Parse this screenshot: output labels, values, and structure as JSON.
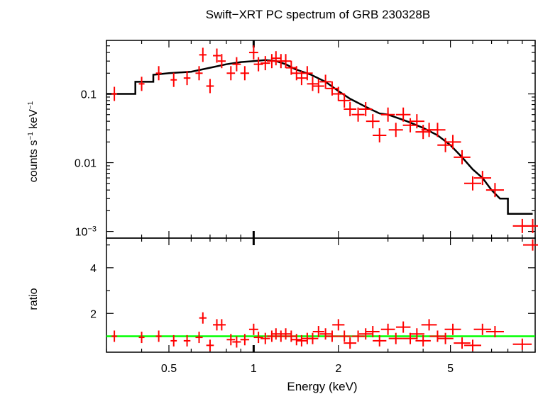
{
  "chart_data": {
    "type": "scatter",
    "title": "Swift−XRT PC spectrum of GRB 230328B",
    "xlabel": "Energy (keV)",
    "x_scale": "log",
    "xlim": [
      0.3,
      10
    ],
    "x_ticks": [
      {
        "v": 0.5,
        "label": "0.5"
      },
      {
        "v": 1,
        "label": "1"
      },
      {
        "v": 2,
        "label": "2"
      },
      {
        "v": 5,
        "label": "5"
      }
    ],
    "panels": [
      {
        "id": "spectrum",
        "ylabel_parts": [
          "counts s",
          "−1",
          " keV",
          "−1"
        ],
        "y_scale": "log",
        "ylim": [
          0.0008,
          0.6
        ],
        "y_ticks": [
          {
            "v": 0.1,
            "label": "0.1"
          },
          {
            "v": 0.01,
            "label": "0.01"
          },
          {
            "v": 0.001,
            "label": "10",
            "exp": "−3"
          }
        ],
        "model": {
          "name": "model",
          "color": "#000000",
          "x": [
            0.3,
            0.38,
            0.38,
            0.44,
            0.44,
            0.5,
            0.6,
            0.7,
            0.8,
            0.9,
            1.0,
            1.1,
            1.2,
            1.3,
            1.4,
            1.6,
            1.8,
            2.0,
            2.2,
            2.5,
            2.8,
            3.0,
            3.5,
            4.0,
            4.5,
            5.0,
            5.5,
            6.0,
            6.5,
            7.0,
            7.5,
            8.0,
            8.0,
            9.8
          ],
          "y": [
            0.1,
            0.1,
            0.15,
            0.15,
            0.19,
            0.2,
            0.21,
            0.24,
            0.27,
            0.29,
            0.3,
            0.31,
            0.3,
            0.27,
            0.23,
            0.19,
            0.15,
            0.11,
            0.085,
            0.065,
            0.052,
            0.05,
            0.04,
            0.032,
            0.025,
            0.018,
            0.012,
            0.008,
            0.006,
            0.004,
            0.003,
            0.003,
            0.0018,
            0.0018
          ]
        },
        "series": [
          {
            "name": "data",
            "color": "#ff0000",
            "x": [
              0.32,
              0.4,
              0.46,
              0.52,
              0.58,
              0.64,
              0.66,
              0.7,
              0.74,
              0.77,
              0.83,
              0.87,
              0.93,
              1.0,
              1.04,
              1.1,
              1.16,
              1.2,
              1.25,
              1.3,
              1.36,
              1.42,
              1.48,
              1.55,
              1.62,
              1.7,
              1.8,
              1.9,
              2.0,
              2.1,
              2.2,
              2.35,
              2.5,
              2.65,
              2.8,
              3.0,
              3.2,
              3.4,
              3.6,
              3.8,
              4.0,
              4.2,
              4.5,
              4.8,
              5.1,
              5.5,
              6.0,
              6.5,
              7.2,
              9.0,
              9.8
            ],
            "y": [
              0.1,
              0.14,
              0.2,
              0.16,
              0.17,
              0.2,
              0.37,
              0.13,
              0.36,
              0.3,
              0.2,
              0.27,
              0.2,
              0.4,
              0.27,
              0.28,
              0.3,
              0.33,
              0.3,
              0.3,
              0.24,
              0.2,
              0.17,
              0.2,
              0.14,
              0.13,
              0.15,
              0.12,
              0.1,
              0.08,
              0.06,
              0.05,
              0.06,
              0.04,
              0.025,
              0.05,
              0.03,
              0.05,
              0.035,
              0.04,
              0.028,
              0.03,
              0.03,
              0.018,
              0.02,
              0.012,
              0.005,
              0.006,
              0.004,
              0.0012,
              0.0012
            ]
          }
        ]
      },
      {
        "id": "ratio",
        "ylabel": "ratio",
        "y_scale": "linear",
        "ylim": [
          0.3,
          5.3
        ],
        "y_ticks": [
          {
            "v": 2,
            "label": "2"
          },
          {
            "v": 4,
            "label": "4"
          }
        ],
        "reference": {
          "value": 1,
          "color": "#00ff00"
        },
        "series": [
          {
            "name": "ratio",
            "color": "#ff0000",
            "x": [
              0.32,
              0.4,
              0.46,
              0.52,
              0.58,
              0.64,
              0.66,
              0.7,
              0.74,
              0.77,
              0.83,
              0.87,
              0.93,
              1.0,
              1.04,
              1.1,
              1.16,
              1.2,
              1.25,
              1.3,
              1.36,
              1.42,
              1.48,
              1.55,
              1.62,
              1.7,
              1.8,
              1.9,
              2.0,
              2.1,
              2.2,
              2.35,
              2.5,
              2.65,
              2.8,
              3.0,
              3.2,
              3.4,
              3.6,
              3.8,
              4.0,
              4.2,
              4.5,
              4.8,
              5.1,
              5.5,
              6.0,
              6.5,
              7.2,
              9.0,
              9.8
            ],
            "y": [
              1.0,
              0.95,
              1.0,
              0.8,
              0.8,
              0.95,
              1.8,
              0.6,
              1.5,
              1.5,
              0.85,
              0.75,
              0.85,
              1.3,
              0.95,
              0.9,
              1.0,
              1.1,
              1.0,
              1.1,
              1.0,
              0.85,
              0.8,
              0.9,
              0.9,
              1.2,
              1.1,
              1.0,
              1.5,
              1.0,
              0.7,
              1.0,
              1.1,
              1.2,
              0.8,
              1.3,
              0.9,
              1.4,
              0.9,
              1.1,
              0.8,
              1.5,
              1.0,
              0.9,
              1.3,
              0.7,
              0.6,
              1.3,
              1.2,
              0.65,
              5.0
            ]
          }
        ]
      }
    ]
  }
}
